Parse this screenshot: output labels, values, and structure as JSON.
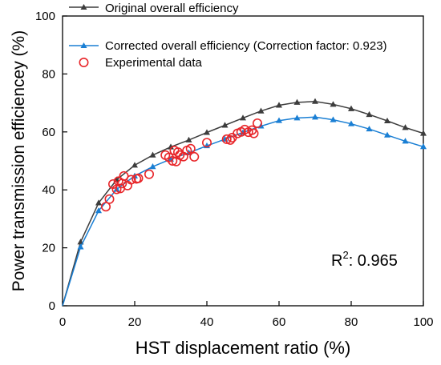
{
  "chart_data": {
    "type": "line",
    "title": "",
    "xlabel": "HST displacement ratio (%)",
    "ylabel": "Power transmission efficiencey (%)",
    "xlim": [
      0,
      100
    ],
    "ylim": [
      0,
      100
    ],
    "xticks": [
      0,
      20,
      40,
      60,
      80,
      100
    ],
    "yticks": [
      0,
      20,
      40,
      60,
      80,
      100
    ],
    "grid": false,
    "legend_position": "top-left",
    "annotation": {
      "prefix": "R",
      "superscript": "2",
      "suffix": ": 0.965"
    },
    "series": [
      {
        "name": "Original overall efficiency",
        "kind": "line",
        "marker": "triangle",
        "color": "#3d3d3d",
        "x": [
          0,
          5,
          10,
          15,
          20,
          25,
          30,
          35,
          40,
          45,
          50,
          55,
          60,
          65,
          70,
          75,
          80,
          85,
          90,
          95,
          100
        ],
        "y": [
          0,
          22,
          35.5,
          43.5,
          48.5,
          52,
          54.8,
          57.2,
          59.8,
          62.3,
          64.8,
          67.2,
          69.2,
          70.2,
          70.5,
          69.5,
          68,
          66,
          63.8,
          61.5,
          59.5
        ]
      },
      {
        "name": "Corrected overall efficiency (Correction factor: 0.923)",
        "kind": "line",
        "marker": "triangle",
        "color": "#1a7fd4",
        "x": [
          0,
          5,
          10,
          15,
          20,
          25,
          30,
          35,
          40,
          45,
          50,
          55,
          60,
          65,
          70,
          75,
          80,
          85,
          90,
          95,
          100
        ],
        "y": [
          0,
          20.3,
          32.8,
          40.2,
          44.8,
          48,
          50.6,
          52.8,
          55.2,
          57.5,
          59.8,
          62,
          63.9,
          64.8,
          65.1,
          64.2,
          62.8,
          61,
          58.9,
          56.8,
          54.9
        ]
      },
      {
        "name": "Experimental data",
        "kind": "scatter",
        "marker": "circle-open",
        "color": "#e8262a",
        "x": [
          12,
          13,
          14,
          15,
          15.5,
          16,
          16.5,
          17,
          18,
          19,
          20.5,
          21,
          24,
          28.5,
          29.5,
          30.5,
          31,
          31.5,
          32,
          32.5,
          33.5,
          34.5,
          35.5,
          36.5,
          40,
          45.5,
          46.5,
          47,
          48.5,
          49.5,
          50.5,
          51.5,
          52.5,
          53,
          54
        ],
        "y": [
          34.2,
          36.8,
          42,
          40.2,
          43,
          40.5,
          42.2,
          44.8,
          41.5,
          43.5,
          43.8,
          44,
          45.4,
          52,
          51.2,
          50,
          53.6,
          49.8,
          53,
          52,
          51.5,
          53.6,
          54.2,
          51.4,
          56.3,
          57.5,
          57.2,
          58,
          59.5,
          60,
          60.8,
          59.9,
          60.6,
          59.5,
          63
        ]
      }
    ]
  }
}
